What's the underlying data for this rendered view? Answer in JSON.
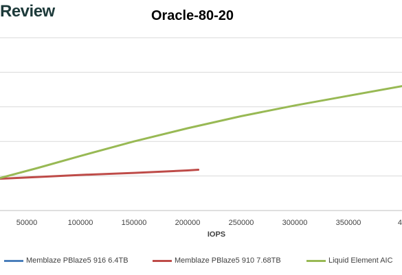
{
  "brand": "Review",
  "chart_data": {
    "type": "line",
    "title": "Oracle-80-20",
    "xlabel": "IOPS",
    "ylabel": "",
    "x_ticks": [
      "50000",
      "100000",
      "150000",
      "200000",
      "250000",
      "300000",
      "350000",
      "4"
    ],
    "grid": true,
    "legend_position": "bottom",
    "series": [
      {
        "name": "Memblaze PBlaze5 916 6.4TB",
        "color": "#4a7ebb",
        "x": [],
        "y": []
      },
      {
        "name": "Memblaze PBlaze5 910 7.68TB",
        "color": "#be4b48",
        "x": [
          25000,
          60000,
          100000,
          150000,
          200000,
          210000
        ],
        "y": [
          9.2,
          9.7,
          10.3,
          10.9,
          11.6,
          11.8
        ]
      },
      {
        "name": "Liquid Element AIC",
        "color": "#98b954",
        "x": [
          25000,
          60000,
          100000,
          150000,
          200000,
          250000,
          300000,
          350000,
          400000
        ],
        "y": [
          9.4,
          12.3,
          15.8,
          20.0,
          23.8,
          27.3,
          30.4,
          33.2,
          36.0
        ]
      }
    ]
  }
}
